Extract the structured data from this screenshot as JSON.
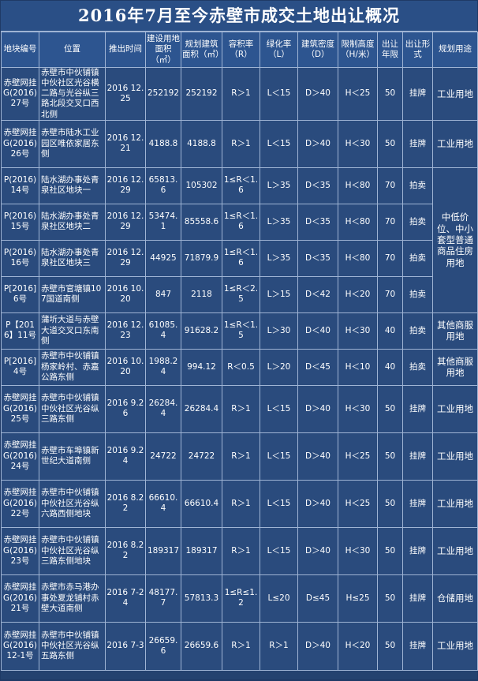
{
  "title": "2016年7月至今赤壁市成交土地出让概况",
  "headers": {
    "code": "地块编号",
    "location": "位置",
    "date": "推出时间",
    "land_area": "建设用地面积（㎡）",
    "build_area": "规划建筑面积（㎡）",
    "far": "容积率（R）",
    "green": "绿化率（L）",
    "density": "建筑密度（D）",
    "height": "限制高度（H/米）",
    "years": "出让年限",
    "form": "出让形式",
    "use": "规划用途"
  },
  "rows": [
    {
      "code": "赤壁网挂G(2016)27号",
      "location": "赤壁市中伙铺镇中伙社区光谷横二路与光谷纵三路北段交叉口西北侧",
      "date": "2016 12.25",
      "land_area": "252192",
      "build_area": "252192",
      "far": "R＞1",
      "green": "L＜15",
      "density": "D＞40",
      "height": "H＜25",
      "years": "50",
      "form": "挂牌",
      "use": "工业用地"
    },
    {
      "code": "赤壁网挂G(2016)26号",
      "location": "赤壁市陆水工业园区唯依家居东侧",
      "date": "2016 12.21",
      "land_area": "4188.8",
      "build_area": "4188.8",
      "far": "R＞1",
      "green": "L＜15",
      "density": "D＞40",
      "height": "H＜30",
      "years": "50",
      "form": "挂牌",
      "use": "工业用地"
    },
    {
      "code": "P(2016)14号",
      "location": "陆水湖办事处青泉社区地块一",
      "date": "2016 12.29",
      "land_area": "65813.6",
      "build_area": "105302",
      "far": "1≤R＜1.6",
      "green": "L＞35",
      "density": "D＜35",
      "height": "H＜80",
      "years": "70",
      "form": "拍卖",
      "use": "中低价位、中小套型普通商品住房用地"
    },
    {
      "code": "P(2016)15号",
      "location": "陆水湖办事处青泉社区地块二",
      "date": "2016 12.29",
      "land_area": "53474.1",
      "build_area": "85558.6",
      "far": "1≤R＜1.6",
      "green": "L＞35",
      "density": "D＜35",
      "height": "H＜80",
      "years": "70",
      "form": "拍卖"
    },
    {
      "code": "P(2016)16号",
      "location": "陆水湖办事处青泉社区地块三",
      "date": "2016 12.29",
      "land_area": "44925",
      "build_area": "71879.9",
      "far": "1≤R＜1.6",
      "green": "L＞35",
      "density": "D＜35",
      "height": "H＜80",
      "years": "70",
      "form": "拍卖"
    },
    {
      "code": "P[2016]6号",
      "location": "赤壁市官塘镇107国道南侧",
      "date": "2016 10.20",
      "land_area": "847",
      "build_area": "2118",
      "far": "1≤R＜2.5",
      "green": "L＞15",
      "density": "D＜42",
      "height": "H＜20",
      "years": "70",
      "form": "拍卖"
    },
    {
      "code": "P【2016】11号",
      "location": "蒲圻大道与赤壁大道交叉口东南侧",
      "date": "2016 12.23",
      "land_area": "61085.4",
      "build_area": "91628.2",
      "far": "1≤R＜1.5",
      "green": "L＞30",
      "density": "D＜40",
      "height": "H＜30",
      "years": "40",
      "form": "拍卖",
      "use": "其他商服用地"
    },
    {
      "code": "P[2016]4号",
      "location": "赤壁市中伙铺镇杨家岭村、赤嘉公路东侧",
      "date": "2016 10.20",
      "land_area": "1988.24",
      "build_area": "994.12",
      "far": "R＜0.5",
      "green": "L＞20",
      "density": "D＜45",
      "height": "H＜10",
      "years": "40",
      "form": "拍卖",
      "use": "其他商服用地"
    },
    {
      "code": "赤壁网挂G(2016)25号",
      "location": "赤壁市中伙铺镇中伙社区光谷纵三路东侧",
      "date": "2016 9.26",
      "land_area": "26284.4",
      "build_area": "26284.4",
      "far": "R＞1",
      "green": "L＜15",
      "density": "D＞40",
      "height": "H＜30",
      "years": "50",
      "form": "挂牌",
      "use": "工业用地"
    },
    {
      "code": "赤壁网挂G(2016)24号",
      "location": "赤壁市车埠镇新世纪大道南侧",
      "date": "2016 9.24",
      "land_area": "24722",
      "build_area": "24722",
      "far": "R＞1",
      "green": "L＜15",
      "density": "D＞40",
      "height": "H＜25",
      "years": "50",
      "form": "挂牌",
      "use": "工业用地"
    },
    {
      "code": "赤壁网挂G(2016)22号",
      "location": "赤壁市中伙铺镇中伙社区光谷纵六路西侧地块",
      "date": "2016 8.22",
      "land_area": "66610.4",
      "build_area": "66610.4",
      "far": "R＞1",
      "green": "L＜15",
      "density": "D＞40",
      "height": "H＜25",
      "years": "50",
      "form": "挂牌",
      "use": "工业用地"
    },
    {
      "code": "赤壁网挂G(2016)23号",
      "location": "赤壁市中伙铺镇中伙社区光谷纵三路东侧地块",
      "date": "2016 8.22",
      "land_area": "189317",
      "build_area": "189317",
      "far": "R＞1",
      "green": "L＜15",
      "density": "D＞40",
      "height": "H＜30",
      "years": "50",
      "form": "挂牌",
      "use": "工业用地"
    },
    {
      "code": "赤壁网挂G(2016)21号",
      "location": "赤壁市赤马港办事处夏龙铺村赤壁大道南侧",
      "date": "2016 7-24",
      "land_area": "48177.7",
      "build_area": "57813.3",
      "far": "1≤R≤1.2",
      "green": "L≤20",
      "density": "D≤45",
      "height": "H≤25",
      "years": "50",
      "form": "挂牌",
      "use": "仓储用地"
    },
    {
      "code": "赤壁网挂G(2016)12-1号",
      "location": "赤壁市中伙铺镇中伙社区光谷纵五路东侧",
      "date": "2016 7-3",
      "land_area": "26659.6",
      "build_area": "26659.6",
      "far": "R＞1",
      "green": "R＞1",
      "density": "D＞40",
      "height": "H＜20",
      "years": "50",
      "form": "挂牌",
      "use": "工业用地"
    }
  ]
}
